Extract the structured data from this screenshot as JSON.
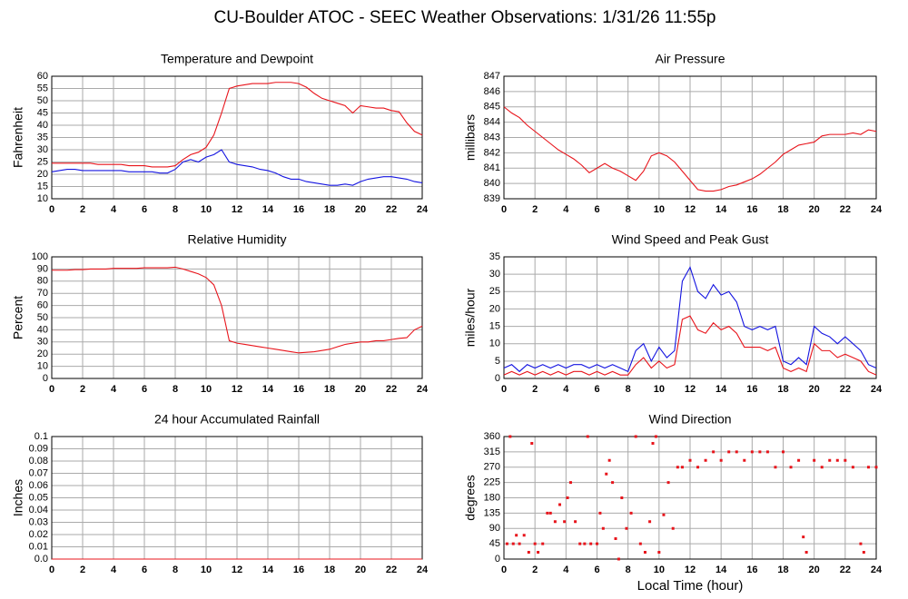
{
  "title": "CU-Boulder ATOC - SEEC Weather Observations: 1/31/26 11:55p",
  "chart_data": [
    {
      "type": "line",
      "title": "Temperature and Dewpoint",
      "y_label": "Fahrenheit",
      "grid": true,
      "x": [
        0,
        0.5,
        1,
        1.5,
        2,
        2.5,
        3,
        3.5,
        4,
        4.5,
        5,
        5.5,
        6,
        6.5,
        7,
        7.5,
        8,
        8.5,
        9,
        9.5,
        10,
        10.5,
        11,
        11.5,
        12,
        12.5,
        13,
        13.5,
        14,
        14.5,
        15,
        15.5,
        16,
        16.5,
        17,
        17.5,
        18,
        18.5,
        19,
        19.5,
        20,
        20.5,
        21,
        21.5,
        22,
        22.5,
        23,
        23.5,
        24
      ],
      "xlim": [
        0,
        24
      ],
      "xticks": [
        0,
        2,
        4,
        6,
        8,
        10,
        12,
        14,
        16,
        18,
        20,
        22,
        24
      ],
      "ylim": [
        10,
        60
      ],
      "yticks": [
        10,
        15,
        20,
        25,
        30,
        35,
        40,
        45,
        50,
        55,
        60
      ],
      "series": [
        {
          "color": "#e8141b",
          "values": [
            24.5,
            24.5,
            24.5,
            24.5,
            24.5,
            24.5,
            24,
            24,
            24,
            24,
            23.5,
            23.5,
            23.5,
            23,
            23,
            23,
            23.5,
            26,
            28,
            29,
            31,
            36,
            45,
            55,
            56,
            56.5,
            57,
            57,
            57,
            57.5,
            57.5,
            57.5,
            57,
            55.5,
            53,
            51,
            50,
            49,
            48,
            45,
            48,
            47.5,
            47,
            47,
            46,
            45.5,
            41,
            37.5,
            36
          ]
        },
        {
          "color": "#1414e0",
          "values": [
            21,
            21.5,
            22,
            22,
            21.5,
            21.5,
            21.5,
            21.5,
            21.5,
            21.5,
            21,
            21,
            21,
            21,
            20.5,
            20.5,
            22,
            25,
            26,
            25,
            27,
            28,
            30,
            25,
            24,
            23.5,
            23,
            22,
            21.5,
            20.5,
            19,
            18,
            18,
            17,
            16.5,
            16,
            15.5,
            15.5,
            16,
            15.5,
            17,
            18,
            18.5,
            19,
            19,
            18.5,
            18,
            17,
            16.5
          ]
        }
      ]
    },
    {
      "type": "line",
      "title": "Air Pressure",
      "y_label": "millibars",
      "grid": true,
      "x": [
        0,
        0.5,
        1,
        1.5,
        2,
        2.5,
        3,
        3.5,
        4,
        4.5,
        5,
        5.5,
        6,
        6.5,
        7,
        7.5,
        8,
        8.5,
        9,
        9.5,
        10,
        10.5,
        11,
        11.5,
        12,
        12.5,
        13,
        13.5,
        14,
        14.5,
        15,
        15.5,
        16,
        16.5,
        17,
        17.5,
        18,
        18.5,
        19,
        19.5,
        20,
        20.5,
        21,
        21.5,
        22,
        22.5,
        23,
        23.5,
        24
      ],
      "xlim": [
        0,
        24
      ],
      "xticks": [
        0,
        2,
        4,
        6,
        8,
        10,
        12,
        14,
        16,
        18,
        20,
        22,
        24
      ],
      "ylim": [
        839,
        847
      ],
      "yticks": [
        839,
        840,
        841,
        842,
        843,
        844,
        845,
        846,
        847
      ],
      "series": [
        {
          "color": "#e8141b",
          "values": [
            845,
            844.6,
            844.3,
            843.8,
            843.4,
            843,
            842.6,
            842.2,
            841.9,
            841.6,
            841.2,
            840.7,
            841,
            841.3,
            841,
            840.8,
            840.5,
            840.2,
            840.8,
            841.8,
            842,
            841.8,
            841.4,
            840.8,
            840.2,
            839.6,
            839.5,
            839.5,
            839.6,
            839.8,
            839.9,
            840.1,
            840.3,
            840.6,
            841,
            841.4,
            841.9,
            842.2,
            842.5,
            842.6,
            842.7,
            843.1,
            843.2,
            843.2,
            843.2,
            843.3,
            843.2,
            843.5,
            843.4
          ]
        }
      ]
    },
    {
      "type": "line",
      "title": "Relative Humidity",
      "y_label": "Percent",
      "grid": true,
      "x": [
        0,
        0.5,
        1,
        1.5,
        2,
        2.5,
        3,
        3.5,
        4,
        4.5,
        5,
        5.5,
        6,
        6.5,
        7,
        7.5,
        8,
        8.5,
        9,
        9.5,
        10,
        10.5,
        11,
        11.5,
        12,
        12.5,
        13,
        13.5,
        14,
        14.5,
        15,
        15.5,
        16,
        16.5,
        17,
        17.5,
        18,
        18.5,
        19,
        19.5,
        20,
        20.5,
        21,
        21.5,
        22,
        22.5,
        23,
        23.5,
        24
      ],
      "xlim": [
        0,
        24
      ],
      "xticks": [
        0,
        2,
        4,
        6,
        8,
        10,
        12,
        14,
        16,
        18,
        20,
        22,
        24
      ],
      "ylim": [
        0,
        100
      ],
      "yticks": [
        0,
        10,
        20,
        30,
        40,
        50,
        60,
        70,
        80,
        90,
        100
      ],
      "series": [
        {
          "color": "#e8141b",
          "values": [
            89,
            89,
            89,
            89.5,
            89.5,
            90,
            90,
            90,
            90.5,
            90.5,
            90.5,
            90.5,
            91,
            91,
            91,
            91,
            91.5,
            90,
            88,
            86,
            83,
            77,
            60,
            31,
            29,
            28,
            27,
            26,
            25,
            24,
            23,
            22,
            21,
            21.5,
            22,
            23,
            24,
            26,
            28,
            29,
            30,
            30,
            31,
            31,
            32,
            33,
            33.5,
            40,
            43
          ]
        }
      ]
    },
    {
      "type": "line",
      "title": "Wind Speed and Peak Gust",
      "y_label": "miles/hour",
      "grid": true,
      "x": [
        0,
        0.5,
        1,
        1.5,
        2,
        2.5,
        3,
        3.5,
        4,
        4.5,
        5,
        5.5,
        6,
        6.5,
        7,
        7.5,
        8,
        8.5,
        9,
        9.5,
        10,
        10.5,
        11,
        11.5,
        12,
        12.5,
        13,
        13.5,
        14,
        14.5,
        15,
        15.5,
        16,
        16.5,
        17,
        17.5,
        18,
        18.5,
        19,
        19.5,
        20,
        20.5,
        21,
        21.5,
        22,
        22.5,
        23,
        23.5,
        24
      ],
      "xlim": [
        0,
        24
      ],
      "xticks": [
        0,
        2,
        4,
        6,
        8,
        10,
        12,
        14,
        16,
        18,
        20,
        22,
        24
      ],
      "ylim": [
        0,
        35
      ],
      "yticks": [
        0,
        5,
        10,
        15,
        20,
        25,
        30,
        35
      ],
      "series": [
        {
          "color": "#1414e0",
          "values": [
            3,
            4,
            2,
            4,
            3,
            4,
            3,
            4,
            3,
            4,
            4,
            3,
            4,
            3,
            4,
            3,
            2,
            8,
            10,
            5,
            9,
            6,
            8,
            28,
            32,
            25,
            23,
            27,
            24,
            25,
            22,
            15,
            14,
            15,
            14,
            15,
            5,
            4,
            6,
            4,
            15,
            13,
            12,
            10,
            12,
            10,
            8,
            4,
            3
          ]
        },
        {
          "color": "#e8141b",
          "values": [
            1,
            2,
            1,
            2,
            1,
            2,
            1,
            2,
            1,
            2,
            2,
            1,
            2,
            1,
            2,
            1,
            1,
            4,
            6,
            3,
            5,
            3,
            4,
            17,
            18,
            14,
            13,
            16,
            14,
            15,
            13,
            9,
            9,
            9,
            8,
            9,
            3,
            2,
            3,
            2,
            10,
            8,
            8,
            6,
            7,
            6,
            5,
            2,
            1
          ]
        }
      ]
    },
    {
      "type": "line",
      "title": "24 hour Accumulated Rainfall",
      "y_label": "Inches",
      "grid": true,
      "x": [
        0,
        24
      ],
      "xlim": [
        0,
        24
      ],
      "xticks": [
        0,
        2,
        4,
        6,
        8,
        10,
        12,
        14,
        16,
        18,
        20,
        22,
        24
      ],
      "ylim": [
        0,
        0.1
      ],
      "yticks": [
        {
          "value": 0,
          "label": "0.0"
        },
        0.01,
        0.02,
        0.03,
        0.04,
        0.05,
        0.06,
        0.07,
        0.08,
        0.09,
        0.1
      ],
      "series": [
        {
          "color": "#e8141b",
          "values": [
            0,
            0
          ]
        }
      ]
    },
    {
      "type": "scatter",
      "title": "Wind Direction",
      "y_label": "degrees",
      "x_label": "Local Time (hour)",
      "grid": true,
      "color": "#e8141b",
      "x": [
        0.2,
        0.4,
        0.6,
        0.8,
        1,
        1.3,
        1.6,
        1.8,
        2,
        2.2,
        2.5,
        2.8,
        3,
        3.3,
        3.6,
        3.9,
        4.1,
        4.3,
        4.6,
        4.9,
        5.2,
        5.4,
        5.6,
        6,
        6.2,
        6.4,
        6.6,
        6.8,
        7,
        7.2,
        7.4,
        7.6,
        7.9,
        8.2,
        8.5,
        8.8,
        9.1,
        9.4,
        9.6,
        9.8,
        10,
        10.3,
        10.6,
        10.9,
        11.2,
        11.5,
        12,
        12.5,
        13,
        13.5,
        14,
        14.5,
        15,
        15.5,
        16,
        16.5,
        17,
        17.5,
        18,
        18.5,
        19,
        19.3,
        19.5,
        20,
        20.5,
        21,
        21.5,
        22,
        22.5,
        23,
        23.2,
        23.5,
        24
      ],
      "values": [
        45,
        360,
        45,
        70,
        45,
        70,
        20,
        340,
        45,
        20,
        45,
        135,
        135,
        110,
        160,
        110,
        180,
        225,
        110,
        45,
        45,
        360,
        45,
        45,
        135,
        90,
        250,
        290,
        225,
        60,
        0,
        180,
        90,
        135,
        360,
        45,
        20,
        110,
        340,
        360,
        20,
        130,
        225,
        90,
        270,
        270,
        290,
        270,
        290,
        315,
        290,
        315,
        315,
        290,
        315,
        315,
        315,
        270,
        315,
        270,
        290,
        65,
        20,
        290,
        270,
        290,
        290,
        290,
        270,
        45,
        20,
        270,
        270
      ],
      "xlim": [
        0,
        24
      ],
      "xticks": [
        0,
        2,
        4,
        6,
        8,
        10,
        12,
        14,
        16,
        18,
        20,
        22,
        24
      ],
      "ylim": [
        0,
        360
      ],
      "yticks": [
        0,
        45,
        90,
        135,
        180,
        225,
        270,
        315,
        360
      ]
    }
  ]
}
